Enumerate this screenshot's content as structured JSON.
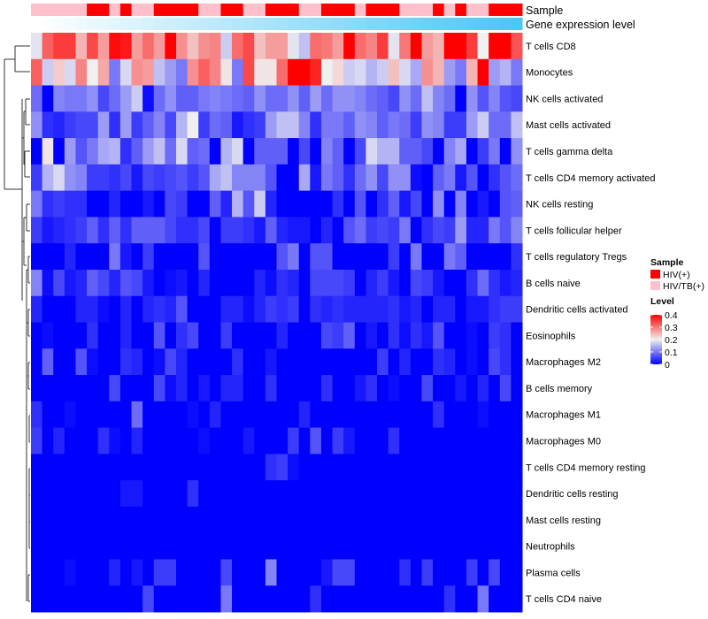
{
  "chart_data": {
    "type": "heatmap",
    "title": "",
    "annotation_labels": {
      "sample": "Sample",
      "gene_expression": "Gene expression level"
    },
    "rows": [
      "T cells CD8",
      "Monocytes",
      "NK cells activated",
      "Mast cells activated",
      "T cells gamma delta",
      "T cells CD4 memory activated",
      "NK cells resting",
      "T cells follicular helper",
      "T cells regulatory  Tregs",
      "B cells naive",
      "Dendritic cells activated",
      "Eosinophils",
      "Macrophages M2",
      "B cells memory",
      "Macrophages M1",
      "Macrophages M0",
      "T cells CD4 memory resting",
      "Dendritic cells resting",
      "Mast cells resting",
      "Neutrophils",
      "Plasma cells",
      "T cells CD4 naive"
    ],
    "n_columns": 44,
    "sample_groups": [
      "HIV/TB(+)",
      "HIV/TB(+)",
      "HIV/TB(+)",
      "HIV/TB(+)",
      "HIV/TB(+)",
      "HIV(+)",
      "HIV(+)",
      "HIV/TB(+)",
      "HIV(+)",
      "HIV/TB(+)",
      "HIV/TB(+)",
      "HIV(+)",
      "HIV(+)",
      "HIV(+)",
      "HIV(+)",
      "HIV/TB(+)",
      "HIV/TB(+)",
      "HIV(+)",
      "HIV(+)",
      "HIV/TB(+)",
      "HIV/TB(+)",
      "HIV(+)",
      "HIV(+)",
      "HIV(+)",
      "HIV/TB(+)",
      "HIV/TB(+)",
      "HIV(+)",
      "HIV(+)",
      "HIV(+)",
      "HIV/TB(+)",
      "HIV(+)",
      "HIV(+)",
      "HIV(+)",
      "HIV/TB(+)",
      "HIV/TB(+)",
      "HIV/TB(+)",
      "HIV(+)",
      "HIV/TB(+)",
      "HIV(+)",
      "HIV/TB(+)",
      "HIV/TB(+)",
      "HIV(+)",
      "HIV(+)",
      "HIV(+)"
    ],
    "gene_expression_level_rank": "increasing left to right (0 to 1)",
    "values": [
      [
        0.19,
        0.32,
        0.35,
        0.35,
        0.25,
        0.34,
        0.27,
        0.39,
        0.38,
        0.27,
        0.31,
        0.27,
        0.4,
        0.28,
        0.24,
        0.28,
        0.29,
        0.17,
        0.31,
        0.34,
        0.24,
        0.27,
        0.27,
        0.19,
        0.16,
        0.31,
        0.3,
        0.27,
        0.4,
        0.31,
        0.29,
        0.35,
        0.19,
        0.3,
        0.4,
        0.27,
        0.25,
        0.4,
        0.4,
        0.35,
        0.2,
        0.4,
        0.4,
        0.33
      ],
      [
        0.32,
        0.17,
        0.23,
        0.18,
        0.29,
        0.2,
        0.26,
        0.1,
        0.18,
        0.28,
        0.27,
        0.16,
        0.13,
        0.1,
        0.28,
        0.32,
        0.29,
        0.21,
        0.1,
        0.34,
        0.21,
        0.21,
        0.31,
        0.4,
        0.4,
        0.37,
        0.2,
        0.22,
        0.17,
        0.18,
        0.15,
        0.17,
        0.24,
        0.18,
        0.14,
        0.28,
        0.25,
        0.13,
        0.1,
        0.25,
        0.4,
        0.13,
        0.15,
        0.1
      ],
      [
        0.09,
        0,
        0.11,
        0.1,
        0.1,
        0.12,
        0.06,
        0.09,
        0.13,
        0.17,
        0.01,
        0.09,
        0.12,
        0.08,
        0.08,
        0.1,
        0.11,
        0.1,
        0.09,
        0.08,
        0.12,
        0.09,
        0.09,
        0.12,
        0.08,
        0.13,
        0.09,
        0.12,
        0.12,
        0.11,
        0.09,
        0.08,
        0.06,
        0.12,
        0.09,
        0.16,
        0.11,
        0.09,
        0,
        0.12,
        0.07,
        0.11,
        0.07,
        0.06
      ],
      [
        0.12,
        0.04,
        0.03,
        0.05,
        0.06,
        0.06,
        0.13,
        0.04,
        0.13,
        0.05,
        0.08,
        0.11,
        0.06,
        0.15,
        0.2,
        0.05,
        0.09,
        0.08,
        0.02,
        0.04,
        0.05,
        0.13,
        0.16,
        0.16,
        0.11,
        0.04,
        0.1,
        0.1,
        0.08,
        0.12,
        0.11,
        0.08,
        0.1,
        0.09,
        0.05,
        0.12,
        0.11,
        0.05,
        0.05,
        0.13,
        0.17,
        0.09,
        0.09,
        0.16
      ],
      [
        0,
        0.21,
        0,
        0.13,
        0.07,
        0.1,
        0.14,
        0.15,
        0.04,
        0.08,
        0.13,
        0.16,
        0.09,
        0.18,
        0.08,
        0.09,
        0,
        0.15,
        0.18,
        0,
        0.08,
        0.08,
        0.08,
        0,
        0.06,
        0,
        0.11,
        0.08,
        0,
        0.06,
        0.18,
        0.15,
        0.15,
        0.08,
        0.08,
        0.06,
        0,
        0.11,
        0.14,
        0,
        0.05,
        0.1,
        0,
        0.12
      ],
      [
        0.05,
        0.15,
        0.18,
        0.12,
        0.11,
        0.05,
        0.05,
        0.04,
        0.06,
        0.02,
        0.06,
        0.05,
        0.06,
        0.07,
        0.05,
        0.07,
        0.14,
        0.16,
        0.11,
        0.11,
        0.11,
        0.07,
        0,
        0,
        0.14,
        0.02,
        0.1,
        0.08,
        0.04,
        0.09,
        0.12,
        0.06,
        0.12,
        0.12,
        0.01,
        0,
        0.08,
        0.1,
        0.02,
        0.07,
        0,
        0.04,
        0.07,
        0.09
      ],
      [
        0.1,
        0.04,
        0.05,
        0.04,
        0.04,
        0,
        0,
        0.03,
        0,
        0,
        0.02,
        0,
        0.06,
        0.05,
        0,
        0,
        0.08,
        0.03,
        0.15,
        0.07,
        0.17,
        0.03,
        0,
        0,
        0,
        0,
        0,
        0.04,
        0,
        0.07,
        0,
        0.04,
        0.08,
        0.02,
        0.06,
        0,
        0.12,
        0,
        0.11,
        0,
        0.02,
        0,
        0.07,
        0.08
      ],
      [
        0.05,
        0.02,
        0.03,
        0.04,
        0.05,
        0.08,
        0.04,
        0.08,
        0.04,
        0.08,
        0.08,
        0.08,
        0.06,
        0.04,
        0.04,
        0.06,
        0,
        0.05,
        0.05,
        0.04,
        0.02,
        0.08,
        0.03,
        0.02,
        0.02,
        0,
        0.03,
        0,
        0.07,
        0.09,
        0.05,
        0.06,
        0.05,
        0.1,
        0,
        0.04,
        0.06,
        0.05,
        0.13,
        0.03,
        0.03,
        0.1,
        0.07,
        0.11
      ],
      [
        0,
        0,
        0,
        0.03,
        0,
        0,
        0,
        0.1,
        0.02,
        0,
        0.05,
        0,
        0,
        0,
        0,
        0.07,
        0,
        0,
        0,
        0,
        0,
        0,
        0.07,
        0.1,
        0,
        0.07,
        0.07,
        0,
        0,
        0,
        0,
        0,
        0.05,
        0,
        0.1,
        0,
        0,
        0.1,
        0.08,
        0,
        0,
        0,
        0,
        0.04
      ],
      [
        0.11,
        0.01,
        0.06,
        0.02,
        0.03,
        0.08,
        0.06,
        0.03,
        0.07,
        0.06,
        0.02,
        0,
        0.01,
        0.02,
        0,
        0.03,
        0,
        0,
        0,
        0,
        0.03,
        0.01,
        0.04,
        0.03,
        0,
        0.06,
        0.06,
        0.06,
        0.05,
        0,
        0.03,
        0.05,
        0.02,
        0,
        0.06,
        0.05,
        0.02,
        0,
        0,
        0.04,
        0.09,
        0.04,
        0.02,
        0.03
      ],
      [
        0.03,
        0,
        0,
        0,
        0.03,
        0.03,
        0.01,
        0,
        0.03,
        0,
        0.03,
        0.04,
        0.03,
        0.07,
        0,
        0,
        0,
        0.03,
        0.03,
        0.01,
        0.03,
        0.05,
        0.04,
        0.05,
        0,
        0.04,
        0.03,
        0.04,
        0.03,
        0.03,
        0.03,
        0.03,
        0.04,
        0.02,
        0.03,
        0,
        0.03,
        0.03,
        0,
        0.02,
        0.02,
        0.04,
        0.05,
        0.05
      ],
      [
        0,
        0.01,
        0,
        0,
        0,
        0.04,
        0,
        0,
        0.03,
        0,
        0,
        0.07,
        0,
        0.04,
        0.06,
        0,
        0,
        0.05,
        0,
        0,
        0,
        0,
        0.03,
        0,
        0,
        0,
        0.06,
        0.05,
        0.08,
        0,
        0.02,
        0,
        0.04,
        0.01,
        0.04,
        0.02,
        0.07,
        0,
        0,
        0.01,
        0,
        0.05,
        0.04,
        0
      ],
      [
        0,
        0.08,
        0,
        0,
        0.07,
        0.01,
        0,
        0,
        0.04,
        0.03,
        0,
        0.01,
        0.06,
        0.03,
        0,
        0,
        0,
        0,
        0.04,
        0,
        0,
        0.02,
        0,
        0,
        0,
        0,
        0,
        0,
        0,
        0,
        0,
        0.05,
        0,
        0.03,
        0,
        0,
        0.04,
        0.03,
        0,
        0.01,
        0,
        0.06,
        0.04,
        0
      ],
      [
        0,
        0,
        0,
        0,
        0,
        0,
        0,
        0.06,
        0,
        0,
        0,
        0.06,
        0.01,
        0.03,
        0,
        0.02,
        0,
        0.03,
        0.03,
        0,
        0,
        0.04,
        0,
        0,
        0,
        0,
        0.04,
        0,
        0,
        0.02,
        0.04,
        0,
        0.01,
        0,
        0,
        0.06,
        0,
        0,
        0.02,
        0,
        0.03,
        0,
        0.06,
        0
      ],
      [
        0.04,
        0,
        0,
        0.01,
        0,
        0,
        0,
        0,
        0,
        0.09,
        0,
        0,
        0,
        0,
        0.01,
        0,
        0.03,
        0,
        0,
        0,
        0,
        0,
        0,
        0,
        0.03,
        0,
        0,
        0,
        0,
        0,
        0,
        0,
        0,
        0,
        0,
        0,
        0.04,
        0,
        0,
        0,
        0.01,
        0,
        0,
        0
      ],
      [
        0.05,
        0,
        0.03,
        0,
        0,
        0,
        0.04,
        0.01,
        0,
        0.03,
        0,
        0,
        0,
        0,
        0,
        0.01,
        0,
        0,
        0,
        0.02,
        0,
        0,
        0,
        0.05,
        0,
        0.07,
        0,
        0.05,
        0.02,
        0,
        0,
        0,
        0.04,
        0,
        0,
        0,
        0,
        0,
        0,
        0,
        0,
        0,
        0,
        0
      ],
      [
        0,
        0,
        0,
        0,
        0,
        0,
        0,
        0,
        0,
        0,
        0,
        0,
        0,
        0,
        0,
        0,
        0,
        0,
        0,
        0,
        0,
        0.04,
        0.05,
        0.01,
        0,
        0,
        0,
        0,
        0,
        0,
        0,
        0,
        0,
        0,
        0,
        0,
        0,
        0,
        0,
        0,
        0,
        0,
        0,
        0
      ],
      [
        0,
        0,
        0,
        0,
        0,
        0,
        0,
        0,
        0.02,
        0.02,
        0,
        0,
        0,
        0,
        0.04,
        0,
        0,
        0,
        0,
        0,
        0,
        0,
        0,
        0,
        0,
        0,
        0,
        0,
        0,
        0,
        0,
        0,
        0,
        0,
        0,
        0,
        0,
        0,
        0,
        0,
        0,
        0,
        0,
        0
      ],
      [
        0,
        0,
        0,
        0,
        0,
        0,
        0,
        0,
        0,
        0,
        0,
        0,
        0,
        0,
        0,
        0,
        0,
        0,
        0,
        0,
        0,
        0,
        0,
        0,
        0,
        0,
        0,
        0,
        0,
        0,
        0,
        0,
        0,
        0,
        0,
        0,
        0,
        0,
        0,
        0,
        0,
        0,
        0,
        0
      ],
      [
        0,
        0,
        0,
        0,
        0,
        0,
        0,
        0,
        0,
        0,
        0,
        0,
        0,
        0,
        0,
        0,
        0,
        0,
        0,
        0,
        0,
        0,
        0,
        0,
        0,
        0,
        0,
        0,
        0,
        0,
        0,
        0,
        0,
        0,
        0,
        0,
        0,
        0,
        0,
        0,
        0,
        0,
        0,
        0
      ],
      [
        0,
        0,
        0,
        0.01,
        0,
        0,
        0,
        0.03,
        0,
        0.02,
        0,
        0.05,
        0.05,
        0,
        0,
        0,
        0,
        0.06,
        0,
        0,
        0,
        0.11,
        0,
        0,
        0,
        0,
        0.02,
        0.06,
        0.06,
        0,
        0,
        0,
        0,
        0.04,
        0,
        0.05,
        0,
        0,
        0,
        0.05,
        0,
        0.06,
        0,
        0
      ],
      [
        0,
        0,
        0,
        0,
        0,
        0,
        0,
        0,
        0,
        0,
        0.06,
        0,
        0,
        0,
        0,
        0,
        0,
        0.1,
        0,
        0,
        0,
        0,
        0,
        0,
        0,
        0.04,
        0,
        0,
        0,
        0,
        0,
        0,
        0,
        0,
        0,
        0,
        0,
        0.04,
        0,
        0,
        0.1,
        0,
        0,
        0
      ]
    ],
    "color_scale": {
      "min": 0,
      "mid": 0.2,
      "max": 0.4,
      "low_color": "#0000FF",
      "mid_color": "#F0F0F0",
      "high_color": "#FF0000"
    },
    "legend": {
      "placement": "right",
      "sample_title": "Sample",
      "sample_entries": [
        {
          "label": "HIV(+)",
          "color": "#FF0000"
        },
        {
          "label": "HIV/TB(+)",
          "color": "#FFC0CB"
        }
      ],
      "level_title": "Level",
      "level_ticks": [
        "0.4",
        "0.3",
        "0.2",
        "0.1",
        "0"
      ],
      "level_tick_values": [
        0.4,
        0.3,
        0.2,
        0.1,
        0
      ]
    },
    "gene_expression_colors": {
      "low": "#FFFFFF",
      "high": "#4CC6F5"
    },
    "row_dendrogram": true
  }
}
